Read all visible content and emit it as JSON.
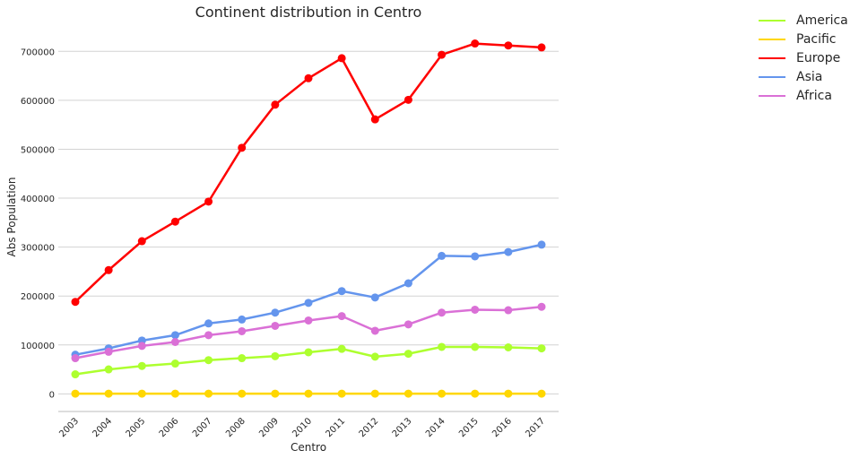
{
  "chart_data": {
    "type": "line",
    "title": "Continent distribution in Centro",
    "xlabel": "Centro",
    "ylabel": "Abs Population",
    "categories": [
      "2003",
      "2004",
      "2005",
      "2006",
      "2007",
      "2008",
      "2009",
      "2010",
      "2011",
      "2012",
      "2013",
      "2014",
      "2015",
      "2016",
      "2017"
    ],
    "yticks": [
      0,
      100000,
      200000,
      300000,
      400000,
      500000,
      600000,
      700000
    ],
    "ylim": [
      -36000,
      750000
    ],
    "grid": "horizontal",
    "legend_position": "outside-right",
    "series": [
      {
        "name": "America",
        "color": "#adff2f",
        "values": [
          40000,
          50000,
          57000,
          62000,
          69000,
          73000,
          77000,
          85000,
          92000,
          76000,
          82000,
          96000,
          96000,
          95000,
          93000
        ]
      },
      {
        "name": "Pacific",
        "color": "#ffd700",
        "values": [
          500,
          500,
          500,
          500,
          500,
          500,
          500,
          500,
          500,
          500,
          500,
          500,
          500,
          500,
          500
        ]
      },
      {
        "name": "Europe",
        "color": "#ff0000",
        "values": [
          188000,
          253000,
          312000,
          352000,
          393000,
          503000,
          591000,
          645000,
          686000,
          561000,
          601000,
          693000,
          716000,
          712000,
          708000
        ]
      },
      {
        "name": "Asia",
        "color": "#6495ed",
        "values": [
          80000,
          93000,
          109000,
          120000,
          144000,
          152000,
          166000,
          186000,
          210000,
          197000,
          226000,
          282000,
          281000,
          290000,
          305000
        ]
      },
      {
        "name": "Africa",
        "color": "#da70d6",
        "values": [
          73000,
          86000,
          98000,
          106000,
          120000,
          128000,
          139000,
          150000,
          159000,
          129000,
          142000,
          166000,
          172000,
          171000,
          178000
        ]
      }
    ]
  }
}
